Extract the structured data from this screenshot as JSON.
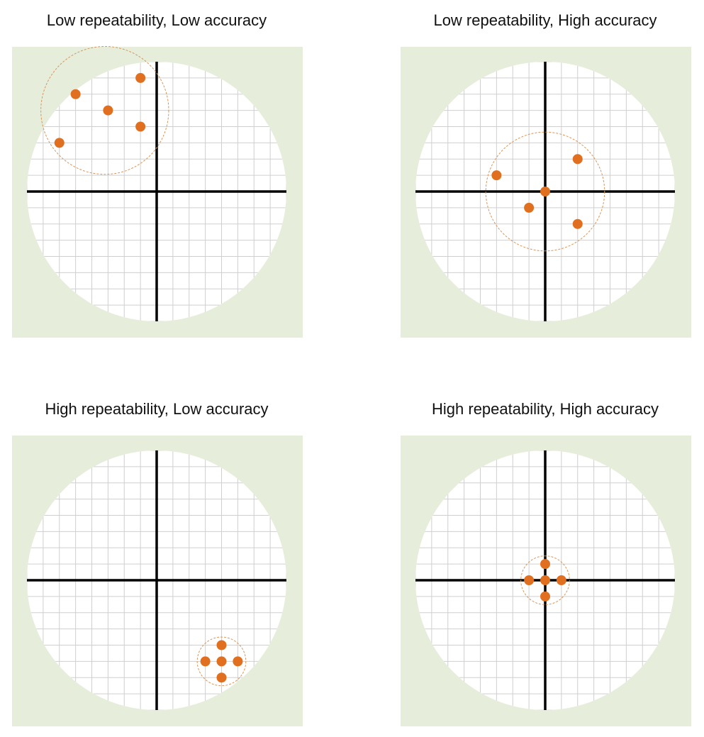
{
  "chart_data": [
    {
      "type": "scatter",
      "title": "Low repeatability, Low accuracy",
      "color": "#e07020",
      "x": [
        -1,
        -5,
        -3,
        -1,
        -6
      ],
      "values": [
        7,
        6,
        5,
        4,
        3
      ],
      "xlim": [
        -8,
        8
      ],
      "ylim": [
        -8,
        8
      ],
      "grid": true
    },
    {
      "type": "scatter",
      "title": "Low repeatability, High accuracy",
      "color": "#e07020",
      "x": [
        -3,
        2,
        0,
        -1,
        2
      ],
      "values": [
        1,
        2,
        0,
        -1,
        -2
      ],
      "xlim": [
        -8,
        8
      ],
      "ylim": [
        -8,
        8
      ],
      "grid": true
    },
    {
      "type": "scatter",
      "title": "High repeatability, Low accuracy",
      "color": "#e07020",
      "x": [
        4,
        3,
        4,
        5,
        4
      ],
      "values": [
        -4,
        -5,
        -5,
        -5,
        -6
      ],
      "xlim": [
        -8,
        8
      ],
      "ylim": [
        -8,
        8
      ],
      "grid": true
    },
    {
      "type": "scatter",
      "title": "High repeatability, High accuracy",
      "color": "#e07020",
      "x": [
        0,
        -1,
        0,
        1,
        0
      ],
      "values": [
        1,
        0,
        0,
        0,
        -1
      ],
      "xlim": [
        -8,
        8
      ],
      "ylim": [
        -8,
        8
      ],
      "grid": true
    }
  ]
}
